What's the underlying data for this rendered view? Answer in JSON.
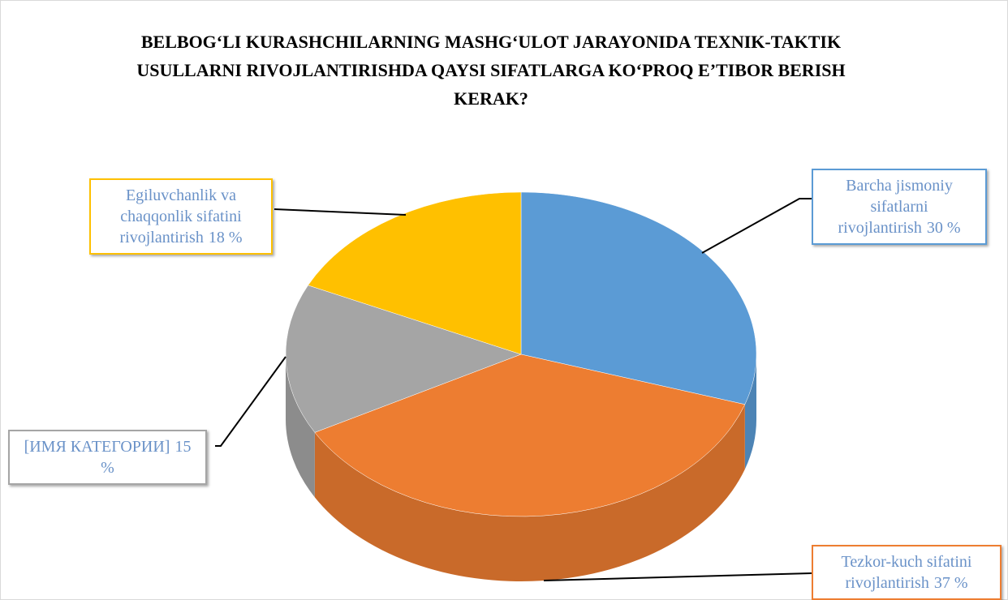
{
  "chart_data": {
    "type": "pie",
    "title": "BELBOG‘LI KURASHCHILARNING MASHG‘ULOT JARAYONIDA TEXNIK-TAKTIK USULLARNI RIVOJLANTIRISHDA QAYSI SIFATLARGA KO‘PROQ E’TIBOR BERISH KERAK?",
    "categories": [
      "Barcha jismoniy sifatlarni rivojlantirish",
      "Tezkor-kuch sifatini rivojlantirish",
      "[ИМЯ КАТЕГОРИИ]",
      "Egiluvchanlik va chaqqonlik sifatini rivojlantirish"
    ],
    "values": [
      30,
      37,
      15,
      18
    ],
    "value_labels": [
      "30 %",
      "37 %",
      "15 %",
      "18 %"
    ],
    "colors": [
      "#5b9bd5",
      "#ed7d31",
      "#a5a5a5",
      "#ffc000"
    ]
  }
}
